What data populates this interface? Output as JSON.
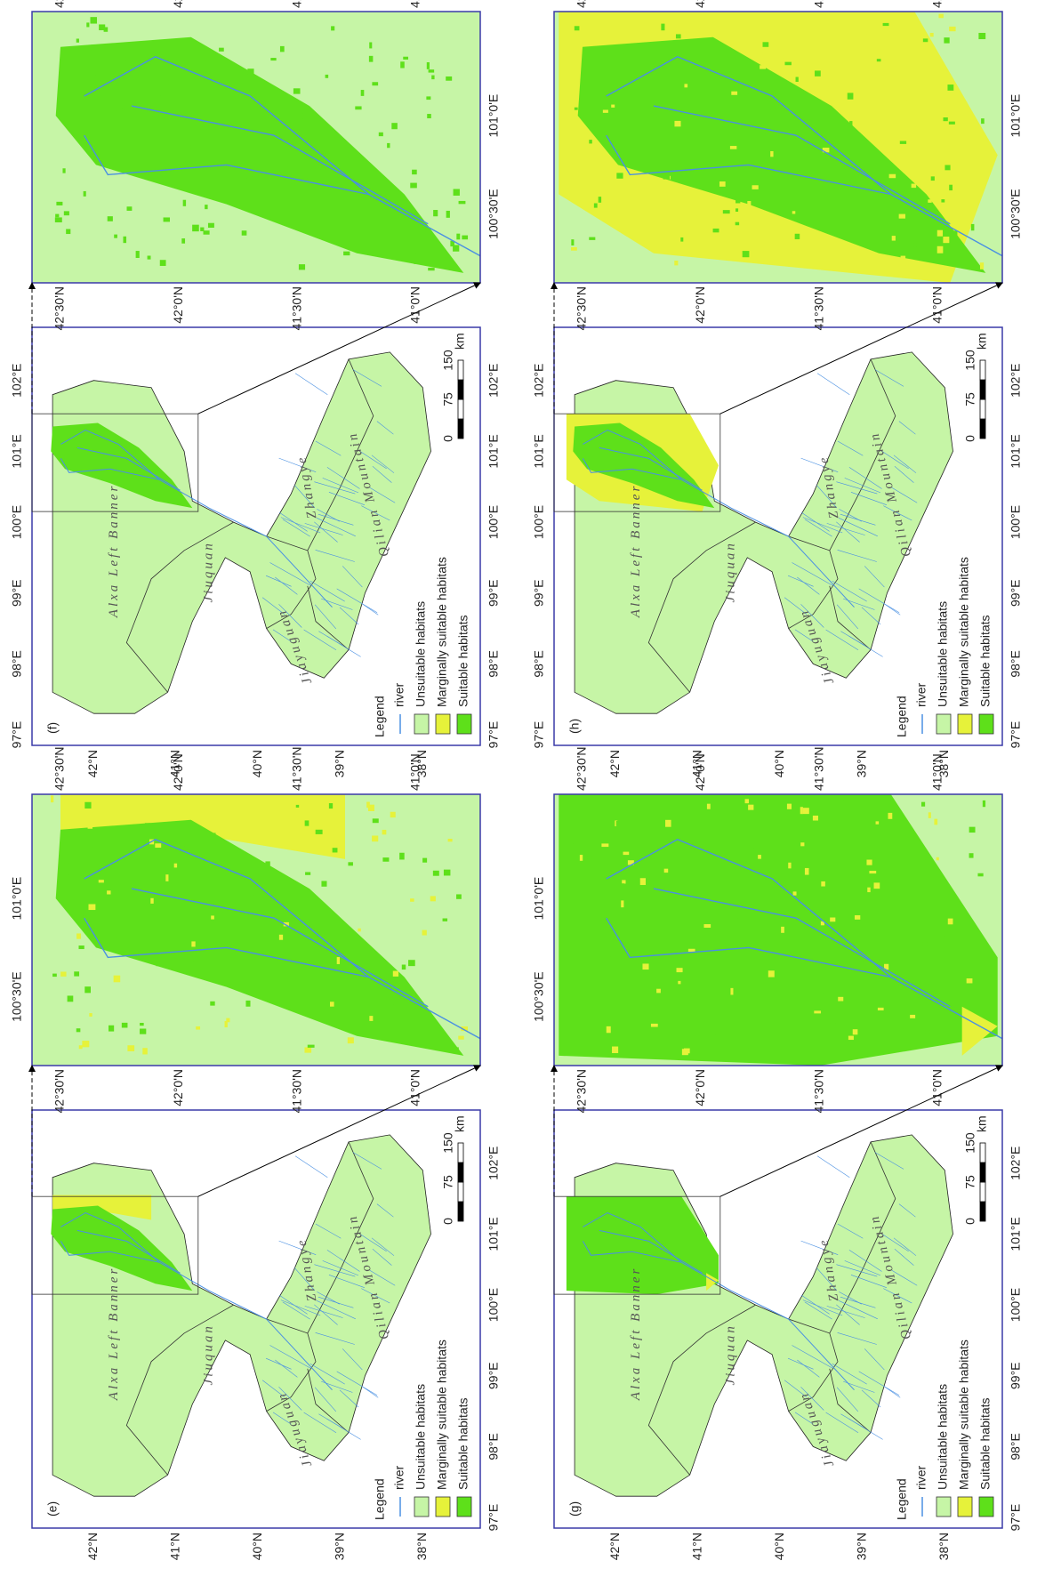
{
  "panels": [
    {
      "label": "(e)"
    },
    {
      "label": "(f)"
    },
    {
      "label": "(g)"
    },
    {
      "label": "(h)"
    }
  ],
  "legend": {
    "title": "Legend",
    "items": [
      "river",
      "Unsuitable habitats",
      "Marginally suitable habitats",
      "Suitable habitats"
    ]
  },
  "map_lon_ticks": [
    "97°E",
    "98°E",
    "99°E",
    "100°E",
    "101°E",
    "102°E"
  ],
  "map_lat_ticks": [
    "42°N",
    "41°N",
    "40°N",
    "39°N",
    "38°N"
  ],
  "inset_lon_ticks": [
    "100°30'E",
    "101°0'E"
  ],
  "inset_lat_ticks": [
    "42°30'N",
    "42°0'N",
    "41°30'N",
    "41°0'N"
  ],
  "scale_bar": {
    "ticks": [
      "0",
      "75",
      "150"
    ],
    "unit": "km"
  },
  "place_names": [
    "Alxa Left Banner",
    "Jiuquan",
    "Jiayuguan",
    "Zhangye",
    "Qilian Mountain"
  ]
}
